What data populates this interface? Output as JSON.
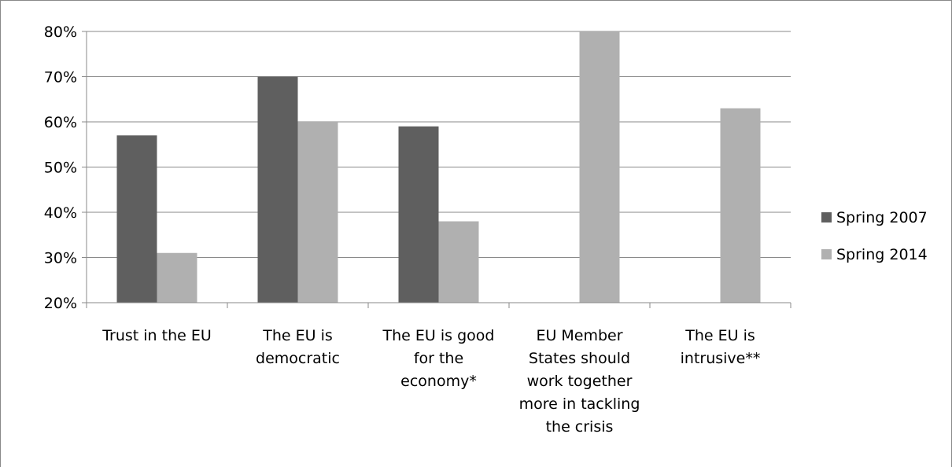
{
  "chart_data": {
    "type": "bar",
    "categories": [
      [
        "Trust in the EU"
      ],
      [
        "The EU is",
        "democratic"
      ],
      [
        "The EU is good",
        "for the",
        "economy*"
      ],
      [
        "EU Member",
        "States should",
        "work together",
        "more in tackling",
        "the crisis"
      ],
      [
        "The EU is",
        "intrusive**"
      ]
    ],
    "series": [
      {
        "name": "Spring 2007",
        "color": "#5f5f5f",
        "values": [
          57,
          70,
          59,
          null,
          null
        ]
      },
      {
        "name": "Spring 2014",
        "color": "#b0b0b0",
        "values": [
          31,
          60,
          38,
          80,
          63
        ]
      }
    ],
    "ylim": [
      20,
      80
    ],
    "yticks": [
      20,
      30,
      40,
      50,
      60,
      70,
      80
    ],
    "ytick_labels": [
      "20%",
      "30%",
      "40%",
      "50%",
      "60%",
      "70%",
      "80%"
    ],
    "grid": true,
    "legend": "right",
    "title": "",
    "xlabel": "",
    "ylabel": ""
  }
}
